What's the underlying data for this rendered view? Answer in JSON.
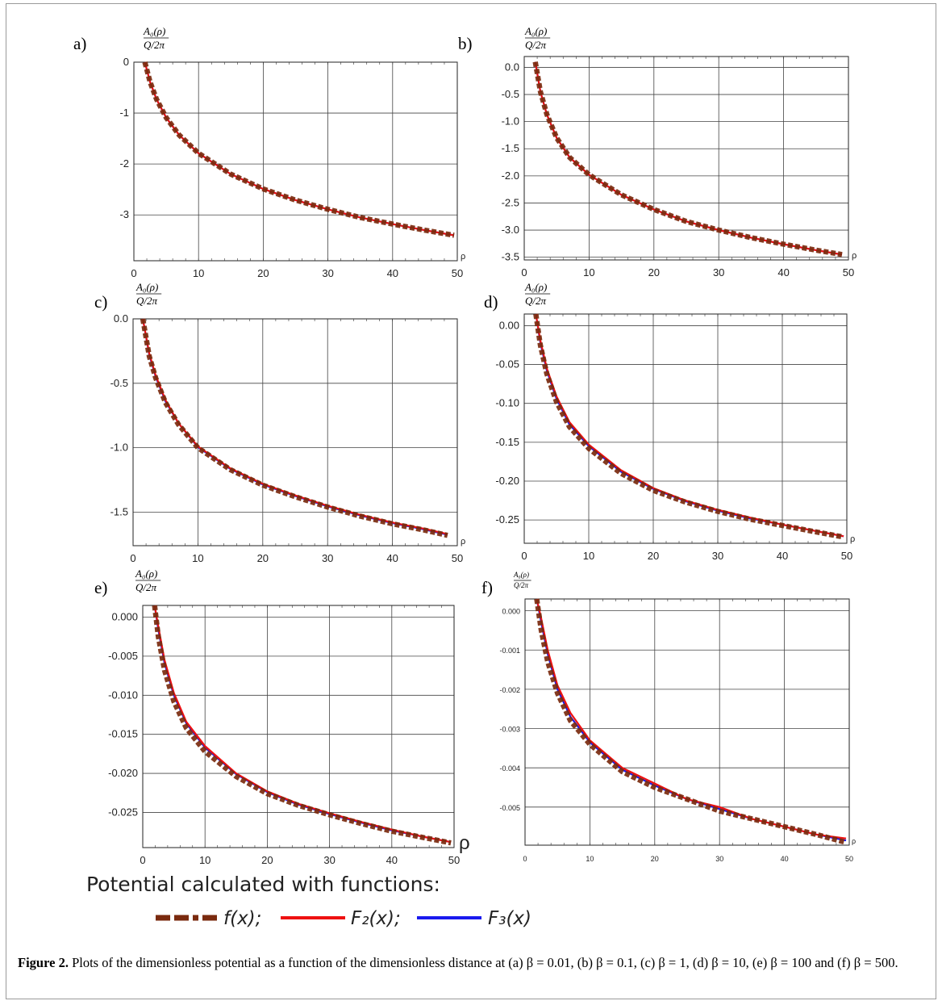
{
  "chart_data": [
    {
      "type": "line",
      "panel_label": "a)",
      "ylabel_num": "A₀(ρ)",
      "ylabel_den": "Q/2π",
      "xlabel": "ρ",
      "xlim": [
        0,
        50
      ],
      "ylim": [
        -3.9,
        0
      ],
      "xticks": [
        0,
        10,
        20,
        30,
        40,
        50
      ],
      "xtick_labels": [
        "0",
        "10",
        "20",
        "30",
        "40",
        "50"
      ],
      "yticks": [
        0,
        -1,
        -2,
        -3
      ],
      "ytick_labels": [
        "0",
        "-1",
        "-2",
        "-3"
      ],
      "x": [
        1.7,
        2.5,
        3.5,
        5,
        7,
        10,
        15,
        20,
        25,
        30,
        35,
        40,
        45,
        49.5
      ],
      "series": [
        {
          "name": "f(x)",
          "values": [
            0.0,
            -0.39,
            -0.73,
            -1.09,
            -1.43,
            -1.79,
            -2.2,
            -2.49,
            -2.71,
            -2.89,
            -3.05,
            -3.18,
            -3.3,
            -3.4
          ]
        },
        {
          "name": "F₂(x)",
          "values": [
            0.0,
            -0.39,
            -0.73,
            -1.09,
            -1.43,
            -1.79,
            -2.2,
            -2.49,
            -2.71,
            -2.89,
            -3.05,
            -3.18,
            -3.3,
            -3.4
          ]
        },
        {
          "name": "F₃(x)",
          "values": [
            0.0,
            -0.39,
            -0.73,
            -1.09,
            -1.43,
            -1.79,
            -2.2,
            -2.49,
            -2.71,
            -2.89,
            -3.05,
            -3.18,
            -3.3,
            -3.4
          ]
        }
      ]
    },
    {
      "type": "line",
      "panel_label": "b)",
      "ylabel_num": "A₀(ρ)",
      "ylabel_den": "Q/2π",
      "xlabel": "ρ",
      "xlim": [
        0,
        50
      ],
      "ylim": [
        -3.55,
        0.2
      ],
      "xticks": [
        0,
        10,
        20,
        30,
        40,
        50
      ],
      "xtick_labels": [
        "0",
        "10",
        "20",
        "30",
        "40",
        "50"
      ],
      "yticks": [
        0,
        -0.5,
        -1,
        -1.5,
        -2,
        -2.5,
        -3,
        -3.5
      ],
      "ytick_labels": [
        "0.0",
        "-0.5",
        "-1.0",
        "-1.5",
        "-2.0",
        "-2.5",
        "-3.0",
        "-3.5"
      ],
      "x": [
        1.7,
        2.5,
        3.5,
        5,
        7,
        10,
        15,
        20,
        25,
        30,
        35,
        40,
        45,
        49
      ],
      "series": [
        {
          "name": "f(x)",
          "values": [
            0.1,
            -0.45,
            -0.87,
            -1.3,
            -1.66,
            -1.98,
            -2.35,
            -2.62,
            -2.84,
            -3.0,
            -3.14,
            -3.26,
            -3.37,
            -3.45
          ]
        },
        {
          "name": "F₂(x)",
          "values": [
            0.1,
            -0.45,
            -0.87,
            -1.3,
            -1.66,
            -1.98,
            -2.35,
            -2.62,
            -2.84,
            -3.0,
            -3.14,
            -3.26,
            -3.37,
            -3.45
          ]
        },
        {
          "name": "F₃(x)",
          "values": [
            0.1,
            -0.45,
            -0.87,
            -1.3,
            -1.66,
            -1.98,
            -2.35,
            -2.62,
            -2.84,
            -3.0,
            -3.14,
            -3.26,
            -3.37,
            -3.45
          ]
        }
      ]
    },
    {
      "type": "line",
      "panel_label": "c)",
      "ylabel_num": "A₀(ρ)",
      "ylabel_den": "Q/2π",
      "xlabel": "ρ",
      "xlim": [
        0,
        50
      ],
      "ylim": [
        -1.76,
        0
      ],
      "xticks": [
        0,
        10,
        20,
        30,
        40,
        50
      ],
      "xtick_labels": [
        "0",
        "10",
        "20",
        "30",
        "40",
        "50"
      ],
      "yticks": [
        0,
        -0.5,
        -1,
        -1.5
      ],
      "ytick_labels": [
        "0.0",
        "-0.5",
        "-1.0",
        "-1.5"
      ],
      "x": [
        1.5,
        2.5,
        3.5,
        5,
        7,
        10,
        15,
        20,
        25,
        30,
        35,
        40,
        45,
        48.5
      ],
      "series": [
        {
          "name": "f(x)",
          "values": [
            0.0,
            -0.29,
            -0.46,
            -0.65,
            -0.82,
            -1.0,
            -1.17,
            -1.29,
            -1.38,
            -1.46,
            -1.53,
            -1.59,
            -1.64,
            -1.68
          ]
        },
        {
          "name": "F₂(x)",
          "values": [
            0.0,
            -0.27,
            -0.44,
            -0.63,
            -0.81,
            -0.99,
            -1.16,
            -1.28,
            -1.37,
            -1.45,
            -1.52,
            -1.58,
            -1.63,
            -1.67
          ]
        },
        {
          "name": "F₃(x)",
          "values": [
            0.0,
            -0.28,
            -0.45,
            -0.64,
            -0.81,
            -0.995,
            -1.165,
            -1.285,
            -1.375,
            -1.455,
            -1.525,
            -1.585,
            -1.635,
            -1.675
          ]
        }
      ]
    },
    {
      "type": "line",
      "panel_label": "d)",
      "ylabel_num": "A₀(ρ)",
      "ylabel_den": "Q/2π",
      "xlabel": "ρ",
      "xlim": [
        0,
        50
      ],
      "ylim": [
        -0.28,
        0.015
      ],
      "xticks": [
        0,
        10,
        20,
        30,
        40,
        50
      ],
      "xtick_labels": [
        "0",
        "10",
        "20",
        "30",
        "40",
        "50"
      ],
      "yticks": [
        0,
        -0.05,
        -0.1,
        -0.15,
        -0.2,
        -0.25
      ],
      "ytick_labels": [
        "0.00",
        "-0.05",
        "-0.10",
        "-0.15",
        "-0.20",
        "-0.25"
      ],
      "x": [
        1.8,
        2.5,
        3.5,
        5,
        7,
        10,
        15,
        20,
        25,
        30,
        35,
        40,
        45,
        49.5
      ],
      "series": [
        {
          "name": "f(x)",
          "values": [
            0.015,
            -0.025,
            -0.062,
            -0.098,
            -0.13,
            -0.158,
            -0.19,
            -0.212,
            -0.227,
            -0.239,
            -0.249,
            -0.257,
            -0.265,
            -0.272
          ]
        },
        {
          "name": "F₂(x)",
          "values": [
            0.015,
            -0.019,
            -0.055,
            -0.091,
            -0.124,
            -0.153,
            -0.186,
            -0.209,
            -0.225,
            -0.237,
            -0.247,
            -0.256,
            -0.264,
            -0.271
          ]
        },
        {
          "name": "F₃(x)",
          "values": [
            0.015,
            -0.022,
            -0.058,
            -0.094,
            -0.127,
            -0.155,
            -0.188,
            -0.21,
            -0.226,
            -0.238,
            -0.248,
            -0.256,
            -0.264,
            -0.271
          ]
        }
      ]
    },
    {
      "type": "line",
      "panel_label": "e)",
      "ylabel_num": "A₀(ρ)",
      "ylabel_den": "Q/2π",
      "xlabel": "ρ",
      "xlim": [
        0,
        50
      ],
      "ylim": [
        -0.0295,
        0.0015
      ],
      "xticks": [
        0,
        10,
        20,
        30,
        40,
        50
      ],
      "xtick_labels": [
        "0",
        "10",
        "20",
        "30",
        "40",
        "50"
      ],
      "yticks": [
        0,
        -0.005,
        -0.01,
        -0.015,
        -0.02,
        -0.025
      ],
      "ytick_labels": [
        "0.000",
        "-0.005",
        "-0.010",
        "-0.015",
        "-0.020",
        "-0.025"
      ],
      "x": [
        1.9,
        2.5,
        3.5,
        5,
        7,
        10,
        15,
        20,
        25,
        30,
        35,
        40,
        45,
        49.5
      ],
      "series": [
        {
          "name": "f(x)",
          "values": [
            0.0015,
            -0.0025,
            -0.0068,
            -0.0108,
            -0.0142,
            -0.0172,
            -0.0204,
            -0.0226,
            -0.0241,
            -0.0253,
            -0.0264,
            -0.0274,
            -0.0282,
            -0.0289
          ]
        },
        {
          "name": "F₂(x)",
          "values": [
            0.0015,
            -0.0012,
            -0.0055,
            -0.0097,
            -0.0134,
            -0.0165,
            -0.02,
            -0.0223,
            -0.0239,
            -0.0251,
            -0.0262,
            -0.0272,
            -0.0281,
            -0.0288
          ]
        },
        {
          "name": "F₃(x)",
          "values": [
            0.0015,
            -0.0016,
            -0.0059,
            -0.01,
            -0.0136,
            -0.0167,
            -0.0201,
            -0.0224,
            -0.024,
            -0.0252,
            -0.0263,
            -0.0273,
            -0.0281,
            -0.0288
          ]
        }
      ]
    },
    {
      "type": "line",
      "panel_label": "f)",
      "ylabel_num": "A₀(ρ)",
      "ylabel_den": "Q/2π",
      "xlabel": "ρ",
      "xlim": [
        0,
        50
      ],
      "ylim": [
        -0.00597,
        0.0003
      ],
      "xticks": [
        0,
        10,
        20,
        30,
        40,
        50
      ],
      "xtick_labels": [
        "0",
        "10",
        "20",
        "30",
        "40",
        "50"
      ],
      "yticks": [
        0,
        -0.001,
        -0.002,
        -0.003,
        -0.004,
        -0.005
      ],
      "ytick_labels": [
        "0.000",
        "-0.001",
        "-0.002",
        "-0.003",
        "-0.004",
        "-0.005"
      ],
      "x": [
        1.8,
        2.5,
        3.5,
        5,
        7,
        10,
        15,
        20,
        25,
        30,
        35,
        40,
        45,
        49.5
      ],
      "series": [
        {
          "name": "f(x)",
          "values": [
            0.0003,
            -0.0005,
            -0.0013,
            -0.0021,
            -0.0028,
            -0.0034,
            -0.0041,
            -0.0045,
            -0.0048,
            -0.0051,
            -0.0053,
            -0.0055,
            -0.0057,
            -0.0059
          ]
        },
        {
          "name": "F₂(x)",
          "values": [
            0.0003,
            -0.0002,
            -0.001,
            -0.0019,
            -0.0026,
            -0.0033,
            -0.004,
            -0.0044,
            -0.0048,
            -0.005,
            -0.0053,
            -0.0055,
            -0.0057,
            -0.0058
          ]
        },
        {
          "name": "F₃(x)",
          "values": [
            0.0003,
            -0.0003,
            -0.0011,
            -0.002,
            -0.0027,
            -0.00335,
            -0.00405,
            -0.00445,
            -0.0048,
            -0.00505,
            -0.0053,
            -0.0055,
            -0.0057,
            -0.00585
          ]
        }
      ]
    }
  ],
  "legend": {
    "title": "Potential calculated with functions:",
    "entries": [
      {
        "label": "f(x);",
        "color": "#7a2a0e",
        "style": "dashed"
      },
      {
        "label": "F₂(x);",
        "color": "#ee1111",
        "style": "solid"
      },
      {
        "label": "F₃(x)",
        "color": "#1a1aee",
        "style": "solid"
      }
    ]
  },
  "caption": {
    "lead": "Figure 2.",
    "text": " Plots of the dimensionless potential as a function of the dimensionless distance at (a) β = 0.01, (b) β = 0.1, (c) β = 1, (d) β = 10, (e) β = 100 and (f) β = 500."
  },
  "colors": {
    "f": "#7a2a0e",
    "F2": "#ee1111",
    "F3": "#1a1aee"
  }
}
